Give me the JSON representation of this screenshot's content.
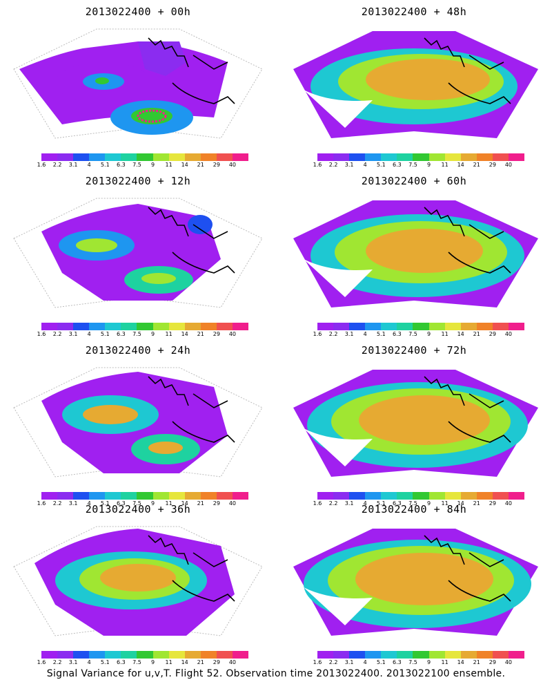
{
  "figure": {
    "caption": "Signal Variance for u,v,T. Flight 52. Observation time 2013022400. 2013022100 ensemble."
  },
  "colorbar": {
    "labels": [
      "1.6",
      "2.2",
      "3.1",
      "4",
      "5.1",
      "6.3",
      "7.5",
      "9",
      "11",
      "14",
      "21",
      "29",
      "40"
    ],
    "colors": [
      "#a020f0",
      "#8b2cf0",
      "#1e50f0",
      "#1e96f0",
      "#1ec8d2",
      "#1ed2a0",
      "#32c832",
      "#a0e632",
      "#e6e63c",
      "#e6aa32",
      "#f08228",
      "#f05050",
      "#f01e8c"
    ]
  },
  "panels": [
    {
      "title": "2013022400 + 00h",
      "lead_hours": 0
    },
    {
      "title": "2013022400 + 48h",
      "lead_hours": 48
    },
    {
      "title": "2013022400 + 12h",
      "lead_hours": 12
    },
    {
      "title": "2013022400 + 60h",
      "lead_hours": 60
    },
    {
      "title": "2013022400 + 24h",
      "lead_hours": 24
    },
    {
      "title": "2013022400 + 72h",
      "lead_hours": 72
    },
    {
      "title": "2013022400 + 36h",
      "lead_hours": 36
    },
    {
      "title": "2013022400 + 84h",
      "lead_hours": 84
    }
  ]
}
